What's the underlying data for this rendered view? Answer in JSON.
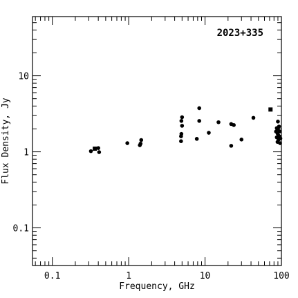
{
  "chart_data": {
    "type": "scatter",
    "title": "",
    "annotation": "2023+335",
    "xlabel": "Frequency, GHz",
    "ylabel": "Flux Density, Jy",
    "xscale": "log",
    "yscale": "log",
    "xlim": [
      0.055,
      100
    ],
    "ylim": [
      0.032,
      60
    ],
    "x_tick_labels": [
      "0.1",
      "1",
      "10",
      "100"
    ],
    "y_tick_labels": [
      "0.1",
      "1",
      "10"
    ],
    "grid": false,
    "marker_color": "#000000",
    "points": [
      {
        "x": 0.32,
        "y": 1.02,
        "marker": "circle"
      },
      {
        "x": 0.36,
        "y": 1.1,
        "marker": "square"
      },
      {
        "x": 0.4,
        "y": 1.12,
        "marker": "circle"
      },
      {
        "x": 0.41,
        "y": 0.99,
        "marker": "circle"
      },
      {
        "x": 0.96,
        "y": 1.3,
        "marker": "circle"
      },
      {
        "x": 1.4,
        "y": 1.22,
        "marker": "circle"
      },
      {
        "x": 1.43,
        "y": 1.28,
        "marker": "circle"
      },
      {
        "x": 1.46,
        "y": 1.43,
        "marker": "circle"
      },
      {
        "x": 4.85,
        "y": 1.38,
        "marker": "circle"
      },
      {
        "x": 4.85,
        "y": 1.6,
        "marker": "circle"
      },
      {
        "x": 4.9,
        "y": 1.72,
        "marker": "circle"
      },
      {
        "x": 4.9,
        "y": 2.55,
        "marker": "circle"
      },
      {
        "x": 5.0,
        "y": 2.85,
        "marker": "circle"
      },
      {
        "x": 5.0,
        "y": 2.2,
        "marker": "circle"
      },
      {
        "x": 7.8,
        "y": 1.48,
        "marker": "circle"
      },
      {
        "x": 8.4,
        "y": 3.75,
        "marker": "circle"
      },
      {
        "x": 8.4,
        "y": 2.55,
        "marker": "circle"
      },
      {
        "x": 11.2,
        "y": 1.78,
        "marker": "circle"
      },
      {
        "x": 15.0,
        "y": 2.45,
        "marker": "circle"
      },
      {
        "x": 22.0,
        "y": 2.32,
        "marker": "circle"
      },
      {
        "x": 22.0,
        "y": 1.2,
        "marker": "circle"
      },
      {
        "x": 23.8,
        "y": 2.25,
        "marker": "circle"
      },
      {
        "x": 30.0,
        "y": 1.45,
        "marker": "circle"
      },
      {
        "x": 43.0,
        "y": 2.8,
        "marker": "circle"
      },
      {
        "x": 72.0,
        "y": 3.6,
        "marker": "square"
      },
      {
        "x": 85.0,
        "y": 1.85,
        "marker": "circle"
      },
      {
        "x": 87.0,
        "y": 1.55,
        "marker": "circle"
      },
      {
        "x": 87.0,
        "y": 2.05,
        "marker": "circle"
      },
      {
        "x": 89.0,
        "y": 1.75,
        "marker": "circle"
      },
      {
        "x": 89.0,
        "y": 1.35,
        "marker": "circle"
      },
      {
        "x": 90.0,
        "y": 2.5,
        "marker": "circle"
      },
      {
        "x": 90.0,
        "y": 2.0,
        "marker": "circle"
      },
      {
        "x": 91.0,
        "y": 1.65,
        "marker": "circle"
      },
      {
        "x": 92.0,
        "y": 1.45,
        "marker": "circle"
      },
      {
        "x": 93.0,
        "y": 2.15,
        "marker": "circle"
      },
      {
        "x": 94.0,
        "y": 1.6,
        "marker": "circle"
      },
      {
        "x": 95.0,
        "y": 1.85,
        "marker": "circle"
      },
      {
        "x": 96.0,
        "y": 1.3,
        "marker": "circle"
      },
      {
        "x": 97.0,
        "y": 1.5,
        "marker": "circle"
      }
    ]
  }
}
